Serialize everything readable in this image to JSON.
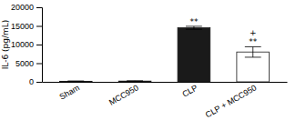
{
  "chart_data": {
    "type": "bar",
    "categories": [
      "Sham",
      "MCC950",
      "CLP",
      "CLP + MCC950"
    ],
    "values": [
      150,
      200,
      14500,
      8000
    ],
    "errors": [
      80,
      80,
      400,
      1400
    ],
    "colors": [
      "#1a1a1a",
      "#1a1a1a",
      "#1a1a1a",
      "white"
    ],
    "ylabel": "IL-6 (pg/mL)",
    "ylim": [
      0,
      20000
    ],
    "yticks": [
      0,
      5000,
      10000,
      15000,
      20000
    ],
    "annotations": [
      {
        "text": "**",
        "category": "CLP"
      },
      {
        "text": "**",
        "category": "CLP + MCC950"
      },
      {
        "text": "+",
        "category": "CLP + MCC950"
      }
    ]
  }
}
